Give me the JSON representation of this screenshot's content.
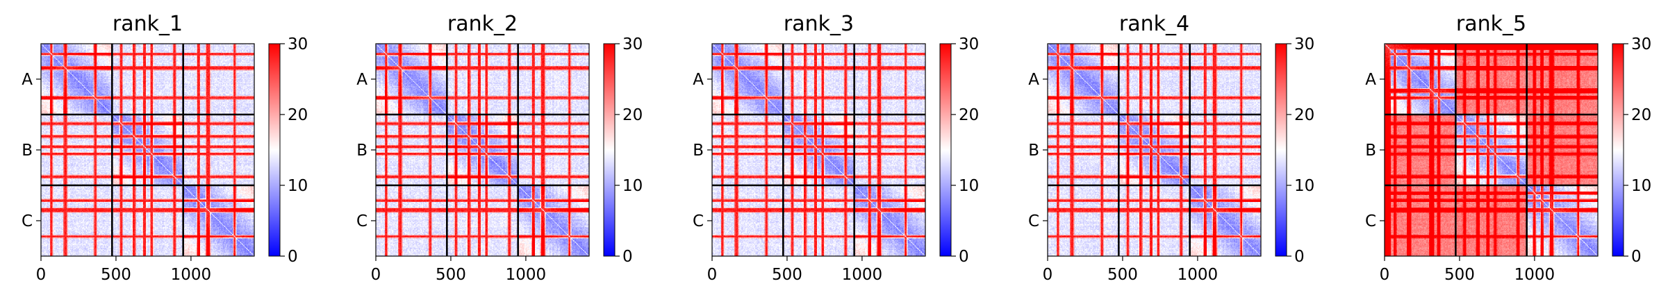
{
  "chart_data": {
    "type": "heatmap",
    "colormap": "bwr",
    "colors": {
      "low": "#0000ff",
      "mid": "#ffffff",
      "high": "#ff0000",
      "boundary": "#000000"
    },
    "clim": [
      0,
      30
    ],
    "colorbar_ticks": [
      "0",
      "10",
      "20",
      "30"
    ],
    "x_ticks": [
      "0",
      "500",
      "1000"
    ],
    "x_tick_values": [
      0,
      500,
      1000
    ],
    "xlim": [
      0,
      1422
    ],
    "chain_labels": [
      "A",
      "B",
      "C"
    ],
    "chain_boundaries": [
      474,
      948
    ],
    "panels": [
      {
        "title": "rank_1"
      },
      {
        "title": "rank_2"
      },
      {
        "title": "rank_3"
      },
      {
        "title": "rank_4"
      },
      {
        "title": "rank_5"
      }
    ]
  }
}
